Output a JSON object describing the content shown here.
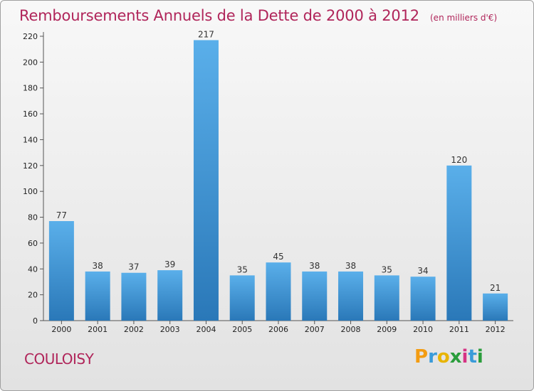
{
  "title": "Remboursements Annuels de la Dette de 2000 à 2012",
  "subtitle": "(en milliers d'€)",
  "commune": "COULOISY",
  "logo_letters": [
    "P",
    "r",
    "o",
    "x",
    "i",
    "t",
    "i"
  ],
  "colors": {
    "title": "#b0255a",
    "bar_top": "#5aafea",
    "bar_bottom": "#2a78b8",
    "axis": "#555555"
  },
  "chart_data": {
    "type": "bar",
    "title": "Remboursements Annuels de la Dette de 2000 à 2012",
    "categories": [
      "2000",
      "2001",
      "2002",
      "2003",
      "2004",
      "2005",
      "2006",
      "2007",
      "2008",
      "2009",
      "2010",
      "2011",
      "2012"
    ],
    "values": [
      77,
      38,
      37,
      39,
      217,
      35,
      45,
      38,
      38,
      35,
      34,
      120,
      21
    ],
    "ylim": [
      0,
      220
    ],
    "yticks": [
      0,
      20,
      40,
      60,
      80,
      100,
      120,
      140,
      160,
      180,
      200,
      220
    ],
    "grid": false
  }
}
